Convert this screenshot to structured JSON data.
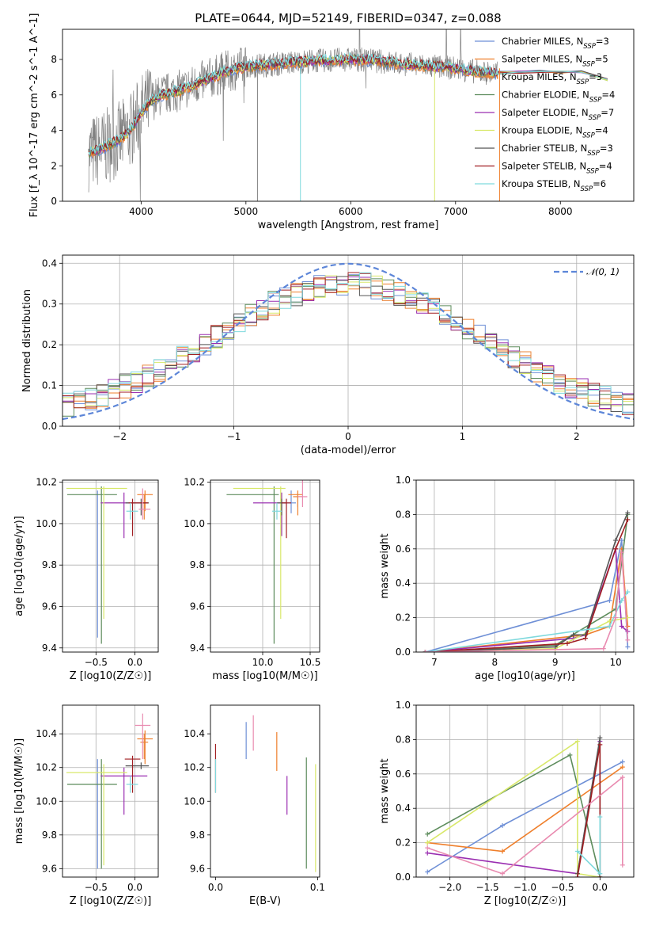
{
  "title": "PLATE=0644, MJD=52149, FIBERID=0347, z=0.088",
  "colors": {
    "chabrier_miles": "#6e8fd6",
    "salpeter_miles": "#ef7f2b",
    "kroupa_miles": "#e9853a",
    "chabrier_elodie": "#5d8c5c",
    "salpeter_elodie": "#9a2eb1",
    "kroupa_elodie": "#d8e86a",
    "chabrier_stelib": "#555555",
    "salpeter_stelib": "#a01e22",
    "kroupa_stelib": "#7fd9dd",
    "gray": "#808080",
    "normal": "#5d86d8",
    "pink": "#e98bb0",
    "lime": "#cbe862"
  },
  "chart_data": [
    {
      "id": "spectrum",
      "type": "line",
      "xlabel": "wavelength [Angstrom, rest frame]",
      "ylabel": "Flux [f_λ 10^-17 erg cm^-2 s^-1 A^-1]",
      "xlim": [
        3250,
        8700
      ],
      "ylim": [
        0,
        9.7
      ],
      "xticks": [
        4000,
        5000,
        6000,
        7000,
        8000
      ],
      "yticks": [
        0,
        2,
        4,
        6,
        8
      ],
      "grid": false,
      "legend_position": "right",
      "legend": [
        {
          "label": "Chabrier MILES, N",
          "sub": "SSP",
          "n": "=3",
          "color": "chabrier_miles"
        },
        {
          "label": "Salpeter MILES, N",
          "sub": "SSP",
          "n": "=5",
          "color": "salpeter_miles"
        },
        {
          "label": "Kroupa MILES, N",
          "sub": "SSP",
          "n": "=3",
          "color": "kroupa_miles"
        },
        {
          "label": "Chabrier ELODIE, N",
          "sub": "SSP",
          "n": "=4",
          "color": "chabrier_elodie"
        },
        {
          "label": "Salpeter ELODIE, N",
          "sub": "SSP",
          "n": "=7",
          "color": "salpeter_elodie"
        },
        {
          "label": "Kroupa ELODIE, N",
          "sub": "SSP",
          "n": "=4",
          "color": "kroupa_elodie"
        },
        {
          "label": "Chabrier STELIB, N",
          "sub": "SSP",
          "n": "=3",
          "color": "chabrier_stelib"
        },
        {
          "label": "Salpeter STELIB, N",
          "sub": "SSP",
          "n": "=4",
          "color": "salpeter_stelib"
        },
        {
          "label": "Kroupa STELIB, N",
          "sub": "SSP",
          "n": "=6",
          "color": "kroupa_stelib"
        }
      ],
      "continuum": {
        "x": [
          3500,
          3600,
          3700,
          3800,
          3900,
          4000,
          4100,
          4200,
          4400,
          4600,
          4800,
          5000,
          5200,
          5400,
          5600,
          5800,
          6000,
          6200,
          6400,
          6600,
          6800,
          7000,
          7200,
          7400
        ],
        "y": [
          2.7,
          2.9,
          3.2,
          3.5,
          4.0,
          5.0,
          5.7,
          6.0,
          6.3,
          6.8,
          7.3,
          7.6,
          7.7,
          7.8,
          7.9,
          7.95,
          8.0,
          7.95,
          7.8,
          7.7,
          7.6,
          7.5,
          7.3,
          7.2
        ]
      },
      "model_tail": {
        "x": [
          7400,
          7600,
          7800,
          8000,
          8200,
          8450
        ],
        "y": [
          7.25,
          7.3,
          7.3,
          7.25,
          7.3,
          6.9
        ]
      }
    },
    {
      "id": "residuals",
      "type": "line",
      "xlabel": "(data-model)/error",
      "ylabel": "Normed distribution",
      "xlim": [
        -2.5,
        2.5
      ],
      "ylim": [
        0,
        0.42
      ],
      "xticks": [
        -2,
        -1,
        0,
        1,
        2
      ],
      "yticks": [
        0.0,
        0.1,
        0.2,
        0.3,
        0.4
      ],
      "grid": true,
      "legend_position": "upper right",
      "legend_label": "𝒩(0, 1)",
      "normal": {
        "mu": 0,
        "sigma": 1
      },
      "bin_width": 0.1,
      "x_start": -2.5
    },
    {
      "id": "age_vs_Z",
      "type": "scatter",
      "xlabel": "Z [log10(Z/Z☉)]",
      "ylabel": "age [log10(age/yr)]",
      "xlim": [
        -0.93,
        0.3
      ],
      "ylim": [
        9.38,
        10.21
      ],
      "xticks": [
        -0.5,
        0.0
      ],
      "yticks": [
        9.4,
        9.6,
        9.8,
        10.0,
        10.2
      ],
      "grid": true,
      "points": [
        {
          "x": -0.48,
          "y": 10.1,
          "xe": [
            0.0,
            0.0
          ],
          "ye": [
            0.65,
            0.06
          ],
          "color": "chabrier_miles"
        },
        {
          "x": 0.13,
          "y": 10.14,
          "xe": [
            0.1,
            0.1
          ],
          "ye": [
            0.08,
            0.02
          ],
          "color": "salpeter_miles"
        },
        {
          "x": 0.12,
          "y": 10.1,
          "xe": [
            0.05,
            0.05
          ],
          "ye": [
            0.08,
            0.04
          ],
          "color": "kroupa_miles"
        },
        {
          "x": -0.43,
          "y": 10.14,
          "xe": [
            0.44,
            0.2
          ],
          "ye": [
            0.72,
            0.04
          ],
          "color": "chabrier_elodie"
        },
        {
          "x": -0.14,
          "y": 10.1,
          "xe": [
            0.3,
            0.3
          ],
          "ye": [
            0.17,
            0.05
          ],
          "color": "salpeter_elodie"
        },
        {
          "x": -0.4,
          "y": 10.17,
          "xe": [
            0.48,
            0.3
          ],
          "ye": [
            0.63,
            0.01
          ],
          "color": "kroupa_elodie"
        },
        {
          "x": 0.08,
          "y": 10.1,
          "xe": [
            0.2,
            0.1
          ],
          "ye": [
            0.06,
            0.02
          ],
          "color": "chabrier_stelib"
        },
        {
          "x": -0.03,
          "y": 10.1,
          "xe": [
            0.05,
            0.2
          ],
          "ye": [
            0.16,
            0.02
          ],
          "color": "salpeter_stelib"
        },
        {
          "x": -0.06,
          "y": 10.06,
          "xe": [
            0.05,
            0.1
          ],
          "ye": [
            0.04,
            0.04
          ],
          "color": "kroupa_stelib"
        },
        {
          "x": 0.1,
          "y": 10.07,
          "xe": [
            0.05,
            0.1
          ],
          "ye": [
            0.05,
            0.1
          ],
          "color": "pink"
        }
      ]
    },
    {
      "id": "age_vs_mass",
      "type": "scatter",
      "xlabel": "mass [log10(M/M☉)]",
      "ylabel": "",
      "xlim": [
        9.45,
        10.6
      ],
      "ylim": [
        9.38,
        10.21
      ],
      "xticks": [
        10.0,
        10.5
      ],
      "yticks": [
        9.4,
        9.6,
        9.8,
        10.0,
        10.2
      ],
      "grid": true,
      "points": [
        {
          "x": 10.3,
          "y": 10.1,
          "xe": [
            0.05,
            0.05
          ],
          "ye": [
            0.05,
            0.06
          ],
          "color": "chabrier_miles"
        },
        {
          "x": 10.37,
          "y": 10.14,
          "xe": [
            0.1,
            0.05
          ],
          "ye": [
            0.1,
            0.02
          ],
          "color": "salpeter_miles"
        },
        {
          "x": 10.37,
          "y": 10.13,
          "xe": [
            0.05,
            0.05
          ],
          "ye": [
            0.05,
            0.02
          ],
          "color": "kroupa_miles"
        },
        {
          "x": 10.12,
          "y": 10.14,
          "xe": [
            0.5,
            0.05
          ],
          "ye": [
            0.72,
            0.04
          ],
          "color": "chabrier_elodie"
        },
        {
          "x": 10.2,
          "y": 10.1,
          "xe": [
            0.3,
            0.05
          ],
          "ye": [
            0.16,
            0.05
          ],
          "color": "salpeter_elodie"
        },
        {
          "x": 10.19,
          "y": 10.17,
          "xe": [
            0.5,
            0.05
          ],
          "ye": [
            0.63,
            0.01
          ],
          "color": "kroupa_elodie"
        },
        {
          "x": 10.2,
          "y": 10.1,
          "xe": [
            0.05,
            0.05
          ],
          "ye": [
            0.06,
            0.02
          ],
          "color": "chabrier_stelib"
        },
        {
          "x": 10.25,
          "y": 10.1,
          "xe": [
            0.05,
            0.05
          ],
          "ye": [
            0.17,
            0.02
          ],
          "color": "salpeter_stelib"
        },
        {
          "x": 10.15,
          "y": 10.06,
          "xe": [
            0.05,
            0.05
          ],
          "ye": [
            0.04,
            0.04
          ],
          "color": "kroupa_stelib"
        },
        {
          "x": 10.42,
          "y": 10.13,
          "xe": [
            0.05,
            0.05
          ],
          "ye": [
            0.05,
            0.1
          ],
          "color": "pink"
        }
      ]
    },
    {
      "id": "massweight_vs_age",
      "type": "line",
      "xlabel": "age [log10(age/yr)]",
      "ylabel": "mass weight",
      "xlim": [
        6.7,
        10.3
      ],
      "ylim": [
        0,
        1.0
      ],
      "xticks": [
        7,
        8,
        9,
        10
      ],
      "yticks": [
        0.0,
        0.2,
        0.4,
        0.6,
        0.8,
        1.0
      ],
      "grid": true,
      "series": [
        {
          "color": "chabrier_miles",
          "x": [
            6.85,
            9.9,
            10.1,
            10.2
          ],
          "y": [
            0.0,
            0.3,
            0.65,
            0.03
          ]
        },
        {
          "color": "salpeter_miles",
          "x": [
            6.85,
            9.5,
            9.9,
            10.1,
            10.2
          ],
          "y": [
            0.0,
            0.1,
            0.15,
            0.6,
            0.15
          ]
        },
        {
          "color": "chabrier_elodie",
          "x": [
            6.85,
            9.0,
            10.0,
            10.2
          ],
          "y": [
            0.0,
            0.04,
            0.25,
            0.8
          ]
        },
        {
          "color": "salpeter_elodie",
          "x": [
            6.85,
            9.3,
            9.5,
            10.0,
            10.1,
            10.2
          ],
          "y": [
            0.0,
            0.08,
            0.1,
            0.6,
            0.15,
            0.12
          ]
        },
        {
          "color": "kroupa_elodie",
          "x": [
            6.85,
            9.0,
            9.9,
            10.2
          ],
          "y": [
            0.0,
            0.02,
            0.18,
            0.2
          ]
        },
        {
          "color": "chabrier_stelib",
          "x": [
            6.85,
            9.0,
            9.3,
            9.5,
            10.0,
            10.2
          ],
          "y": [
            0.0,
            0.03,
            0.1,
            0.1,
            0.65,
            0.81
          ]
        },
        {
          "color": "salpeter_stelib",
          "x": [
            6.85,
            9.2,
            9.5,
            10.0,
            10.2
          ],
          "y": [
            0.0,
            0.05,
            0.08,
            0.6,
            0.77
          ]
        },
        {
          "color": "kroupa_stelib",
          "x": [
            6.85,
            9.9,
            10.1,
            10.2
          ],
          "y": [
            0.0,
            0.15,
            0.3,
            0.35
          ]
        },
        {
          "color": "pink",
          "x": [
            6.85,
            9.8,
            10.0,
            10.1,
            10.2
          ],
          "y": [
            0.0,
            0.02,
            0.2,
            0.58,
            0.07
          ]
        }
      ]
    },
    {
      "id": "mass_vs_Z",
      "type": "scatter",
      "xlabel": "Z [log10(Z/Z☉)]",
      "ylabel": "mass [log10(M/M☉)]",
      "xlim": [
        -0.93,
        0.3
      ],
      "ylim": [
        9.55,
        10.57
      ],
      "xticks": [
        -0.5,
        0.0
      ],
      "yticks": [
        9.6,
        9.8,
        10.0,
        10.2,
        10.4
      ],
      "grid": true,
      "points": [
        {
          "x": -0.48,
          "y": 10.25,
          "xe": [
            0.0,
            0.0
          ],
          "ye": [
            0.65,
            0.0
          ],
          "color": "chabrier_miles"
        },
        {
          "x": 0.13,
          "y": 10.37,
          "xe": [
            0.1,
            0.1
          ],
          "ye": [
            0.15,
            0.05
          ],
          "color": "salpeter_miles"
        },
        {
          "x": 0.12,
          "y": 10.35,
          "xe": [
            0.05,
            0.05
          ],
          "ye": [
            0.1,
            0.05
          ],
          "color": "kroupa_miles"
        },
        {
          "x": -0.43,
          "y": 10.1,
          "xe": [
            0.44,
            0.2
          ],
          "ye": [
            0.5,
            0.15
          ],
          "color": "chabrier_elodie"
        },
        {
          "x": -0.14,
          "y": 10.15,
          "xe": [
            0.3,
            0.3
          ],
          "ye": [
            0.23,
            0.05
          ],
          "color": "salpeter_elodie"
        },
        {
          "x": -0.4,
          "y": 10.17,
          "xe": [
            0.48,
            0.3
          ],
          "ye": [
            0.55,
            0.05
          ],
          "color": "kroupa_elodie"
        },
        {
          "x": 0.08,
          "y": 10.21,
          "xe": [
            0.2,
            0.1
          ],
          "ye": [
            0.02,
            0.02
          ],
          "color": "chabrier_stelib"
        },
        {
          "x": -0.03,
          "y": 10.25,
          "xe": [
            0.1,
            0.1
          ],
          "ye": [
            0.2,
            0.02
          ],
          "color": "salpeter_stelib"
        },
        {
          "x": -0.06,
          "y": 10.1,
          "xe": [
            0.05,
            0.1
          ],
          "ye": [
            0.05,
            0.05
          ],
          "color": "kroupa_stelib"
        },
        {
          "x": 0.1,
          "y": 10.45,
          "xe": [
            0.1,
            0.1
          ],
          "ye": [
            0.2,
            0.07
          ],
          "color": "pink"
        }
      ]
    },
    {
      "id": "mass_vs_ebv",
      "type": "scatter",
      "xlabel": "E(B-V)",
      "ylabel": "",
      "xlim": [
        -0.005,
        0.102
      ],
      "ylim": [
        9.55,
        10.57
      ],
      "xticks": [
        0.0,
        0.1
      ],
      "yticks": [
        9.6,
        9.8,
        10.0,
        10.2,
        10.4
      ],
      "grid": false,
      "points": [
        {
          "x": 0.0,
          "y": 10.25,
          "xe": [
            0,
            0
          ],
          "ye": [
            0.2,
            0.09
          ],
          "color": "salpeter_stelib"
        },
        {
          "x": 0.0,
          "y": 10.15,
          "xe": [
            0,
            0
          ],
          "ye": [
            0.1,
            0.1
          ],
          "color": "kroupa_stelib"
        },
        {
          "x": 0.03,
          "y": 10.37,
          "xe": [
            0,
            0
          ],
          "ye": [
            0.12,
            0.1
          ],
          "color": "chabrier_miles"
        },
        {
          "x": 0.037,
          "y": 10.4,
          "xe": [
            0,
            0
          ],
          "ye": [
            0.1,
            0.11
          ],
          "color": "pink"
        },
        {
          "x": 0.06,
          "y": 10.3,
          "xe": [
            0,
            0
          ],
          "ye": [
            0.12,
            0.11
          ],
          "color": "salpeter_miles"
        },
        {
          "x": 0.07,
          "y": 10.1,
          "xe": [
            0,
            0
          ],
          "ye": [
            0.18,
            0.05
          ],
          "color": "salpeter_elodie"
        },
        {
          "x": 0.089,
          "y": 9.93,
          "xe": [
            0,
            0
          ],
          "ye": [
            0.33,
            0.33
          ],
          "color": "chabrier_elodie"
        },
        {
          "x": 0.098,
          "y": 9.9,
          "xe": [
            0,
            0
          ],
          "ye": [
            0.32,
            0.32
          ],
          "color": "kroupa_elodie"
        }
      ]
    },
    {
      "id": "massweight_vs_Z",
      "type": "line",
      "xlabel": "Z [log10(Z/Z☉)]",
      "ylabel": "mass weight",
      "xlim": [
        -2.45,
        0.45
      ],
      "ylim": [
        0,
        1.0
      ],
      "xticks": [
        -2.0,
        -1.5,
        -1.0,
        -0.5,
        0.0
      ],
      "yticks": [
        0.0,
        0.2,
        0.4,
        0.6,
        0.8,
        1.0
      ],
      "grid": true,
      "series": [
        {
          "color": "chabrier_miles",
          "x": [
            -2.3,
            -1.3,
            0.3
          ],
          "y": [
            0.03,
            0.3,
            0.67
          ]
        },
        {
          "color": "salpeter_miles",
          "x": [
            -2.3,
            -1.3,
            0.3
          ],
          "y": [
            0.2,
            0.15,
            0.64
          ]
        },
        {
          "color": "chabrier_elodie",
          "x": [
            -2.3,
            -0.4,
            0.0
          ],
          "y": [
            0.25,
            0.71,
            0.0
          ]
        },
        {
          "color": "salpeter_elodie",
          "x": [
            -2.3,
            -0.3,
            0.0
          ],
          "y": [
            0.14,
            0.02,
            0.79
          ]
        },
        {
          "color": "kroupa_elodie",
          "x": [
            -2.3,
            -0.3,
            -0.3,
            0.0
          ],
          "y": [
            0.2,
            0.79,
            0.02,
            0.0
          ]
        },
        {
          "color": "chabrier_stelib",
          "x": [
            -0.3,
            0.0,
            0.0
          ],
          "y": [
            0.02,
            0.81,
            0.0
          ]
        },
        {
          "color": "salpeter_stelib",
          "x": [
            -0.3,
            0.0,
            0.0
          ],
          "y": [
            0.0,
            0.77,
            0.0
          ]
        },
        {
          "color": "kroupa_stelib",
          "x": [
            -0.3,
            0.0,
            0.0
          ],
          "y": [
            0.15,
            0.02,
            0.35
          ]
        },
        {
          "color": "pink",
          "x": [
            -2.3,
            -1.3,
            0.3,
            0.3
          ],
          "y": [
            0.17,
            0.02,
            0.58,
            0.07
          ]
        }
      ]
    }
  ]
}
